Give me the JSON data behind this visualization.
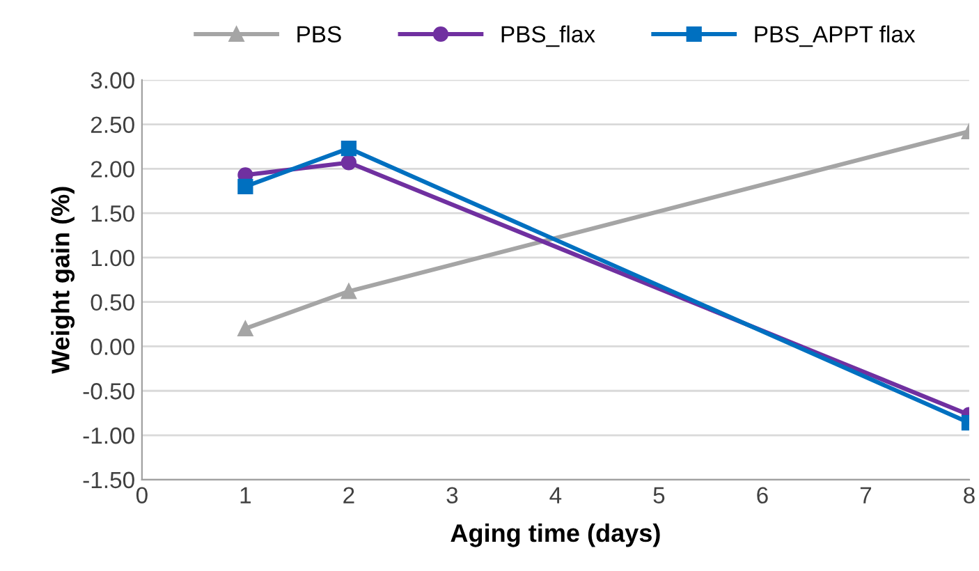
{
  "chart_data": {
    "type": "line",
    "xlabel": "Aging time (days)",
    "ylabel": "Weight gain (%)",
    "xlim": [
      0,
      8
    ],
    "xticks": [
      0,
      1,
      2,
      3,
      4,
      5,
      6,
      7,
      8
    ],
    "ylim": [
      -1.5,
      3.0
    ],
    "yticks": [
      {
        "value": -1.5,
        "label": "-1.50"
      },
      {
        "value": -1.0,
        "label": "-1.00"
      },
      {
        "value": -0.5,
        "label": "-0.50"
      },
      {
        "value": 0,
        "label": "0.00"
      },
      {
        "value": 0.5,
        "label": "0.50"
      },
      {
        "value": 1.0,
        "label": "1.00"
      },
      {
        "value": 1.5,
        "label": "1.50"
      },
      {
        "value": 2.0,
        "label": "2.00"
      },
      {
        "value": 2.5,
        "label": "2.50"
      },
      {
        "value": 3.0,
        "label": "3.00"
      }
    ],
    "grid": "y",
    "legend": "top",
    "x": [
      1,
      2,
      8
    ],
    "series": [
      {
        "name": "PBS",
        "color": "#a5a5a5",
        "values": [
          0.2,
          0.62,
          2.42
        ],
        "marker": "triangle"
      },
      {
        "name": "PBS_flax",
        "color": "#7030a0",
        "values": [
          1.93,
          2.07,
          -0.77
        ],
        "marker": "circle"
      },
      {
        "name": "PBS_APPT flax",
        "color": "#0070c0",
        "values": [
          1.8,
          2.23,
          -0.86
        ],
        "marker": "square"
      }
    ]
  }
}
